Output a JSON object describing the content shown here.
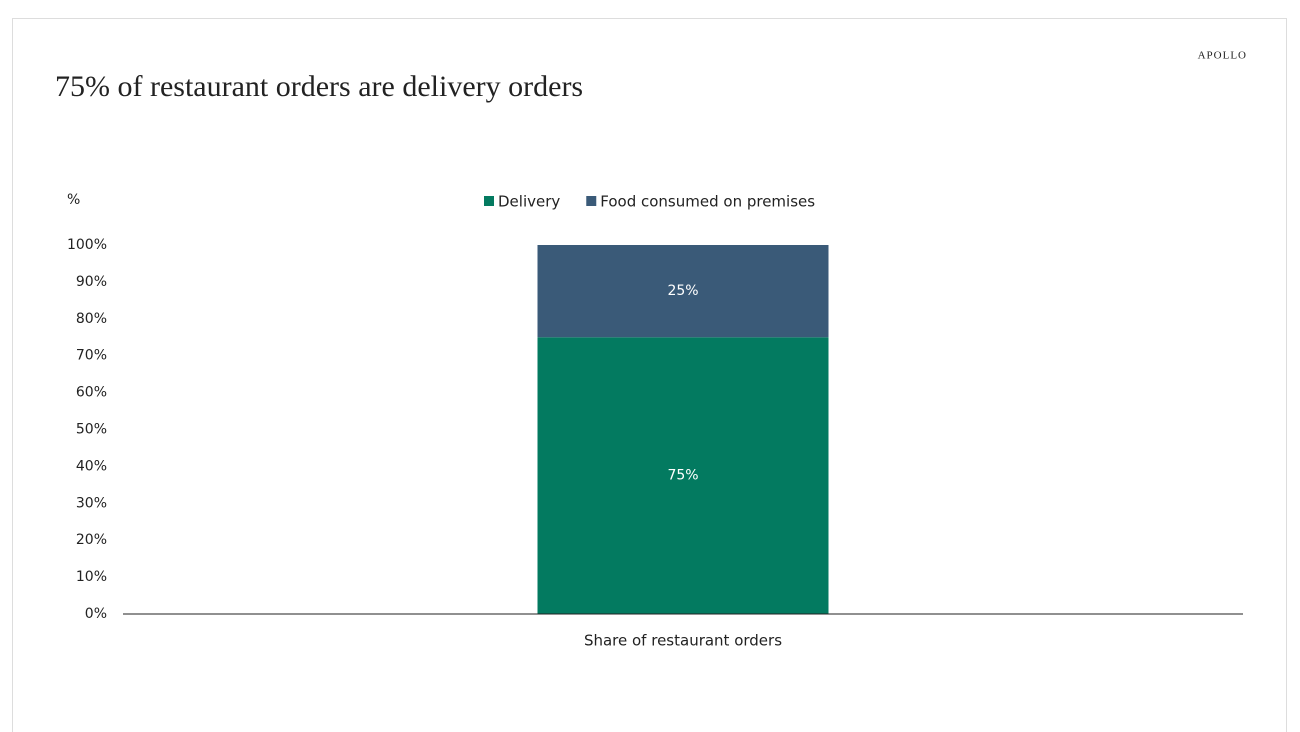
{
  "chart_data": {
    "type": "bar",
    "stacked": true,
    "brand": "APOLLO",
    "title": "75% of restaurant orders are delivery orders",
    "y_label": "%",
    "categories": [
      "Share of restaurant orders"
    ],
    "series": [
      {
        "name": "Delivery",
        "color": "#037a60",
        "values": [
          75
        ],
        "value_labels": [
          "75%"
        ]
      },
      {
        "name": "Food consumed on premises",
        "color": "#3a5a78",
        "values": [
          25
        ],
        "value_labels": [
          "25%"
        ]
      }
    ],
    "ylim": [
      0,
      100
    ],
    "yticks": [
      {
        "value": 0,
        "label": "0%"
      },
      {
        "value": 10,
        "label": "10%"
      },
      {
        "value": 20,
        "label": "20%"
      },
      {
        "value": 30,
        "label": "30%"
      },
      {
        "value": 40,
        "label": "40%"
      },
      {
        "value": 50,
        "label": "50%"
      },
      {
        "value": 60,
        "label": "60%"
      },
      {
        "value": 70,
        "label": "70%"
      },
      {
        "value": 80,
        "label": "80%"
      },
      {
        "value": 90,
        "label": "90%"
      },
      {
        "value": 100,
        "label": "100%"
      }
    ],
    "legend": "top"
  }
}
